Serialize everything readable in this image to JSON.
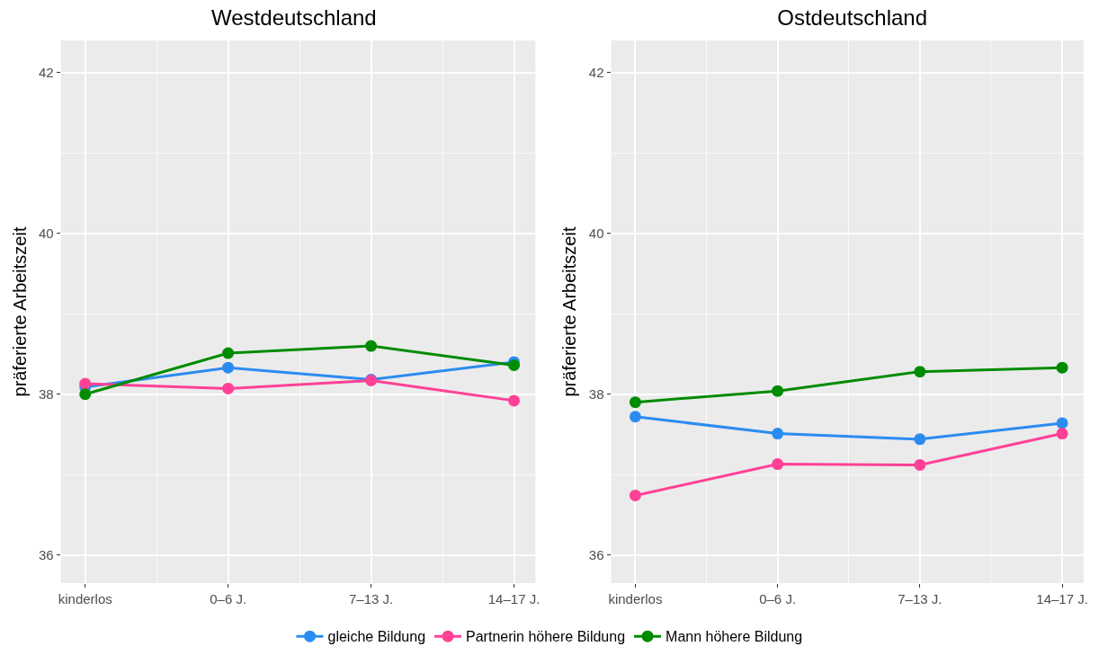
{
  "chart_data": [
    {
      "type": "line",
      "title": "Westdeutschland",
      "ylabel": "präferierte Arbeitszeit",
      "categories": [
        "kinderlos",
        "0–6 J.",
        "7–13 J.",
        "14–17 J."
      ],
      "ylim": [
        35.65,
        42.4
      ],
      "yticks": [
        36,
        38,
        40,
        42
      ],
      "grid": true,
      "legend": "bottom",
      "marker": "circle",
      "series": [
        {
          "name": "gleiche Bildung",
          "color": "#2b8cf0",
          "values": [
            38.09,
            38.33,
            38.18,
            38.4
          ]
        },
        {
          "name": "Partnerin höhere Bildung",
          "color": "#ff4196",
          "values": [
            38.13,
            38.07,
            38.17,
            37.92
          ]
        },
        {
          "name": "Mann höhere Bildung",
          "color": "#008b00",
          "values": [
            38.0,
            38.51,
            38.6,
            38.36
          ]
        }
      ]
    },
    {
      "type": "line",
      "title": "Ostdeutschland",
      "ylabel": "präferierte Arbeitszeit",
      "categories": [
        "kinderlos",
        "0–6 J.",
        "7–13 J.",
        "14–17 J."
      ],
      "ylim": [
        35.65,
        42.4
      ],
      "yticks": [
        36,
        38,
        40,
        42
      ],
      "grid": true,
      "marker": "circle",
      "series": [
        {
          "color": "#2b8cf0",
          "values": [
            37.72,
            37.51,
            37.44,
            37.64
          ]
        },
        {
          "color": "#ff4196",
          "values": [
            36.74,
            37.13,
            37.12,
            37.51
          ]
        },
        {
          "color": "#008b00",
          "values": [
            37.9,
            38.04,
            38.28,
            38.33
          ]
        }
      ]
    }
  ]
}
